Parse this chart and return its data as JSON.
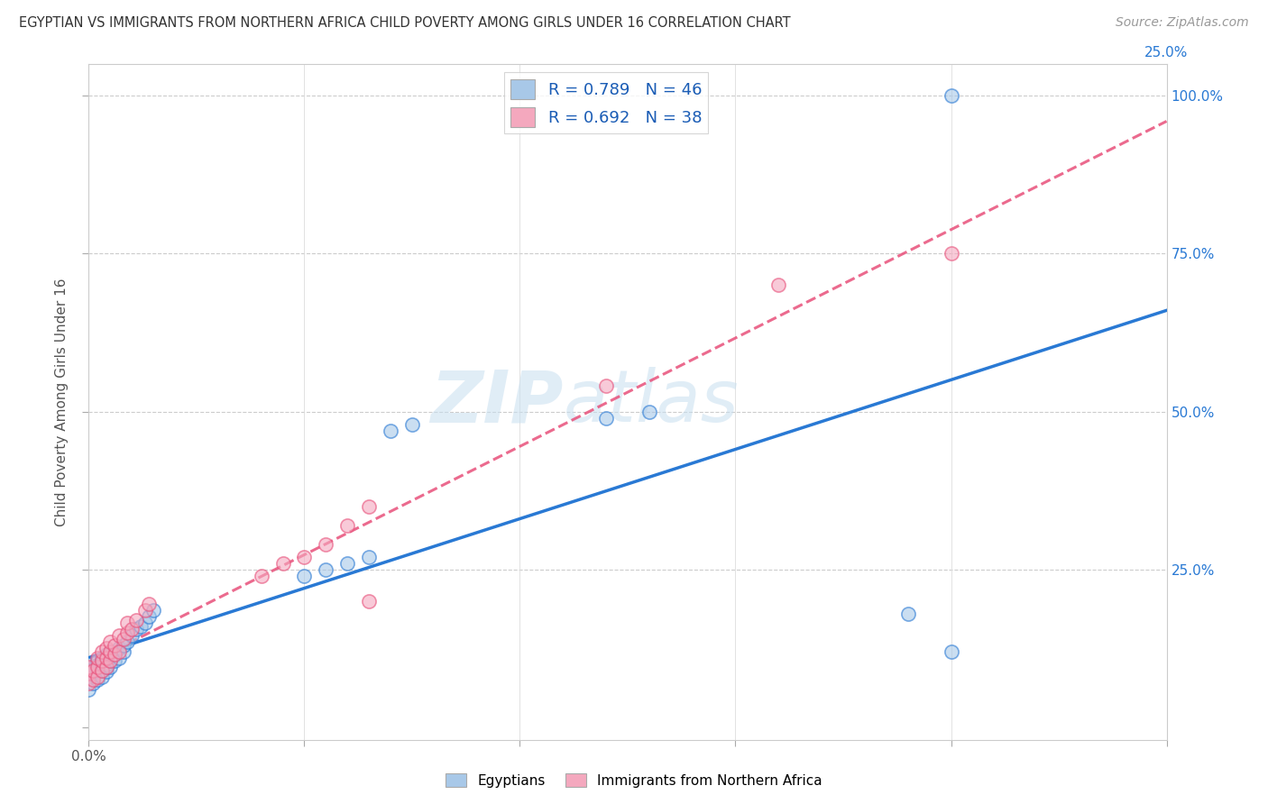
{
  "title": "EGYPTIAN VS IMMIGRANTS FROM NORTHERN AFRICA CHILD POVERTY AMONG GIRLS UNDER 16 CORRELATION CHART",
  "source": "Source: ZipAtlas.com",
  "ylabel": "Child Poverty Among Girls Under 16",
  "xlim": [
    0.0,
    0.25
  ],
  "ylim": [
    -0.02,
    1.05
  ],
  "r_egyptian": 0.789,
  "n_egyptian": 46,
  "r_northern_africa": 0.692,
  "n_northern_africa": 38,
  "egyptian_color": "#a8c8e8",
  "northern_africa_color": "#f4a8be",
  "line_egyptian_color": "#2979d4",
  "line_northern_africa_color": "#e8507a",
  "watermark_zip": "ZIP",
  "watermark_atlas": "atlas",
  "legend_label_egyptian": "Egyptians",
  "legend_label_northern_africa": "Immigrants from Northern Africa",
  "eg_x": [
    0.0,
    0.0,
    0.0,
    0.0,
    0.001,
    0.001,
    0.002,
    0.002,
    0.002,
    0.002,
    0.003,
    0.003,
    0.003,
    0.003,
    0.003,
    0.004,
    0.004,
    0.004,
    0.004,
    0.005,
    0.005,
    0.005,
    0.006,
    0.006,
    0.007,
    0.007,
    0.008,
    0.008,
    0.009,
    0.01,
    0.011,
    0.012,
    0.013,
    0.014,
    0.015,
    0.05,
    0.055,
    0.06,
    0.065,
    0.07,
    0.075,
    0.12,
    0.13,
    0.19,
    0.2,
    0.2
  ],
  "eg_y": [
    0.06,
    0.08,
    0.09,
    0.1,
    0.07,
    0.085,
    0.075,
    0.09,
    0.095,
    0.105,
    0.08,
    0.09,
    0.1,
    0.105,
    0.11,
    0.088,
    0.095,
    0.1,
    0.115,
    0.095,
    0.105,
    0.115,
    0.105,
    0.115,
    0.11,
    0.125,
    0.12,
    0.13,
    0.135,
    0.145,
    0.155,
    0.16,
    0.165,
    0.175,
    0.185,
    0.24,
    0.25,
    0.26,
    0.27,
    0.47,
    0.48,
    0.49,
    0.5,
    0.18,
    0.12,
    1.0
  ],
  "na_x": [
    0.0,
    0.0,
    0.0,
    0.001,
    0.001,
    0.002,
    0.002,
    0.002,
    0.003,
    0.003,
    0.003,
    0.004,
    0.004,
    0.004,
    0.005,
    0.005,
    0.005,
    0.006,
    0.006,
    0.007,
    0.007,
    0.008,
    0.009,
    0.009,
    0.01,
    0.011,
    0.013,
    0.014,
    0.04,
    0.045,
    0.05,
    0.055,
    0.06,
    0.065,
    0.065,
    0.12,
    0.16,
    0.2
  ],
  "na_y": [
    0.07,
    0.085,
    0.095,
    0.075,
    0.09,
    0.08,
    0.095,
    0.11,
    0.09,
    0.105,
    0.12,
    0.095,
    0.11,
    0.125,
    0.105,
    0.12,
    0.135,
    0.115,
    0.13,
    0.12,
    0.145,
    0.14,
    0.15,
    0.165,
    0.155,
    0.17,
    0.185,
    0.195,
    0.24,
    0.26,
    0.27,
    0.29,
    0.32,
    0.35,
    0.2,
    0.54,
    0.7,
    0.75
  ]
}
